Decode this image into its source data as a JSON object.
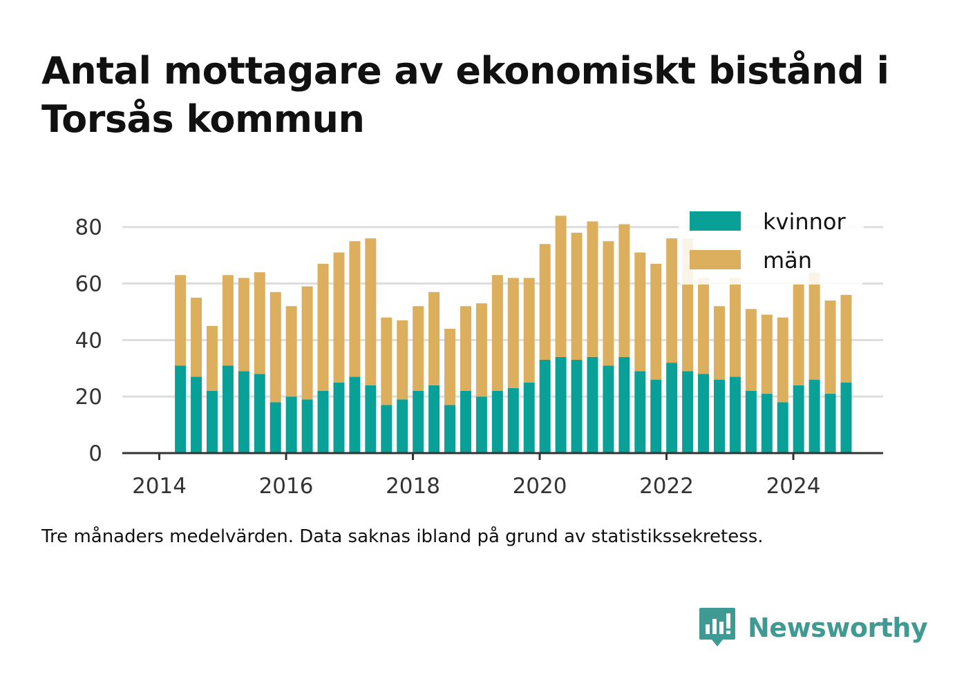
{
  "title": "Antal mottagare av ekonomiskt bistånd i Torsås kommun",
  "caption": "Tre månaders medelvärden. Data saknas ibland på grund av statistikssekretess.",
  "brand": {
    "name": "Newsworthy",
    "icon": "newsworthy-bar-chart-logo-icon",
    "color": "#3e9a92"
  },
  "chart_data": {
    "type": "bar",
    "stacked": true,
    "x": [
      "2014-05",
      "2014-08",
      "2014-11",
      "2015-02",
      "2015-05",
      "2015-08",
      "2015-11",
      "2016-02",
      "2016-05",
      "2016-08",
      "2016-11",
      "2017-02",
      "2017-05",
      "2017-08",
      "2017-11",
      "2018-02",
      "2018-05",
      "2018-08",
      "2018-11",
      "2019-02",
      "2019-05",
      "2019-08",
      "2019-11",
      "2020-02",
      "2020-05",
      "2020-08",
      "2020-11",
      "2021-02",
      "2021-05",
      "2021-08",
      "2021-11",
      "2022-02",
      "2022-05",
      "2022-08",
      "2022-11",
      "2023-02",
      "2023-05",
      "2023-08",
      "2023-11",
      "2024-02",
      "2024-05",
      "2024-08",
      "2024-11"
    ],
    "series": [
      {
        "name": "kvinnor",
        "color": "#09a097",
        "values": [
          31,
          27,
          22,
          31,
          29,
          28,
          18,
          20,
          19,
          22,
          25,
          27,
          24,
          17,
          19,
          22,
          24,
          17,
          22,
          20,
          22,
          23,
          25,
          33,
          34,
          33,
          34,
          31,
          34,
          29,
          26,
          32,
          29,
          28,
          26,
          27,
          22,
          21,
          18,
          24,
          26,
          21,
          25
        ]
      },
      {
        "name": "män",
        "color": "#dbaf5d",
        "values": [
          32,
          28,
          23,
          32,
          33,
          36,
          39,
          32,
          40,
          45,
          46,
          48,
          52,
          31,
          28,
          30,
          33,
          27,
          30,
          33,
          41,
          39,
          37,
          41,
          50,
          45,
          48,
          44,
          47,
          42,
          41,
          44,
          47,
          34,
          26,
          35,
          29,
          28,
          30,
          36,
          38,
          33,
          31
        ]
      }
    ],
    "xlabel": "",
    "ylabel": "",
    "ylim": [
      0,
      88
    ],
    "yticks": [
      0,
      20,
      40,
      60,
      80
    ],
    "xticks": [
      {
        "value": "2014-01",
        "label": "2014"
      },
      {
        "value": "2016-01",
        "label": "2016"
      },
      {
        "value": "2018-01",
        "label": "2018"
      },
      {
        "value": "2020-01",
        "label": "2020"
      },
      {
        "value": "2022-01",
        "label": "2022"
      },
      {
        "value": "2024-01",
        "label": "2024"
      }
    ],
    "xrange": [
      "2013-06",
      "2025-06"
    ],
    "grid": "horizontal",
    "legend": "top-right"
  }
}
